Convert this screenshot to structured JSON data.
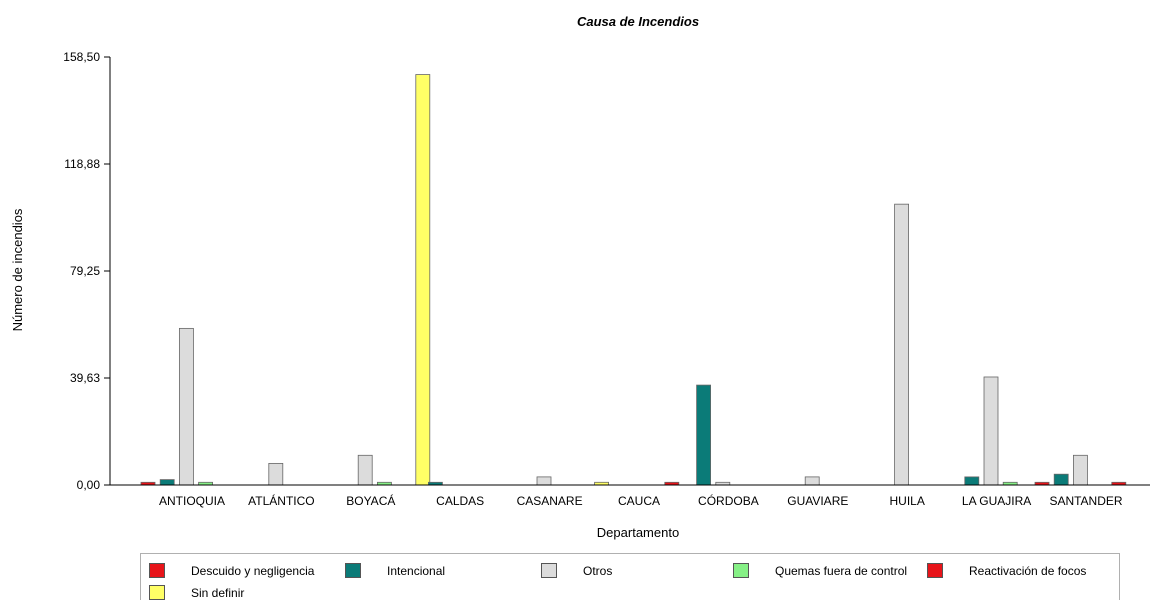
{
  "chart_data": {
    "type": "bar",
    "title": "Causa de Incendios",
    "xlabel": "Departamento",
    "ylabel": "Número de incendios",
    "ylim": [
      0,
      158.5
    ],
    "yticks": [
      "0,00",
      "39,63",
      "79,25",
      "118,88",
      "158,50"
    ],
    "ytick_values": [
      0,
      39.63,
      79.25,
      118.88,
      158.5
    ],
    "grid": false,
    "legend_position": "bottom",
    "categories": [
      "ANTIOQUIA",
      "ATLÁNTICO",
      "BOYACÁ",
      "CALDAS",
      "CASANARE",
      "CAUCA",
      "CÓRDOBA",
      "GUAVIARE",
      "HUILA",
      "LA GUAJIRA",
      "SANTANDER"
    ],
    "series": [
      {
        "name": "Descuido y negligencia",
        "color": "#e8141a",
        "values": [
          1,
          0,
          0,
          0,
          0,
          0,
          0,
          0,
          0,
          0,
          1
        ]
      },
      {
        "name": "Intencional",
        "color": "#0b7b78",
        "values": [
          2,
          0,
          0,
          1,
          0,
          0,
          37,
          0,
          0,
          3,
          4
        ]
      },
      {
        "name": "Otros",
        "color": "#dcdcdc",
        "values": [
          58,
          8,
          11,
          0,
          3,
          0,
          1,
          3,
          104,
          40,
          11
        ]
      },
      {
        "name": "Quemas fuera de control",
        "color": "#86f086",
        "values": [
          1,
          0,
          1,
          0,
          0,
          0,
          0,
          0,
          0,
          1,
          0
        ]
      },
      {
        "name": "Reactivación de focos",
        "color": "#e8141a",
        "values": [
          0,
          0,
          0,
          0,
          0,
          1,
          0,
          0,
          0,
          0,
          1
        ]
      },
      {
        "name": "Sin definir",
        "color": "#ffff66",
        "values": [
          0,
          0,
          152,
          0,
          1,
          0,
          0,
          0,
          0,
          0,
          0
        ]
      }
    ]
  }
}
